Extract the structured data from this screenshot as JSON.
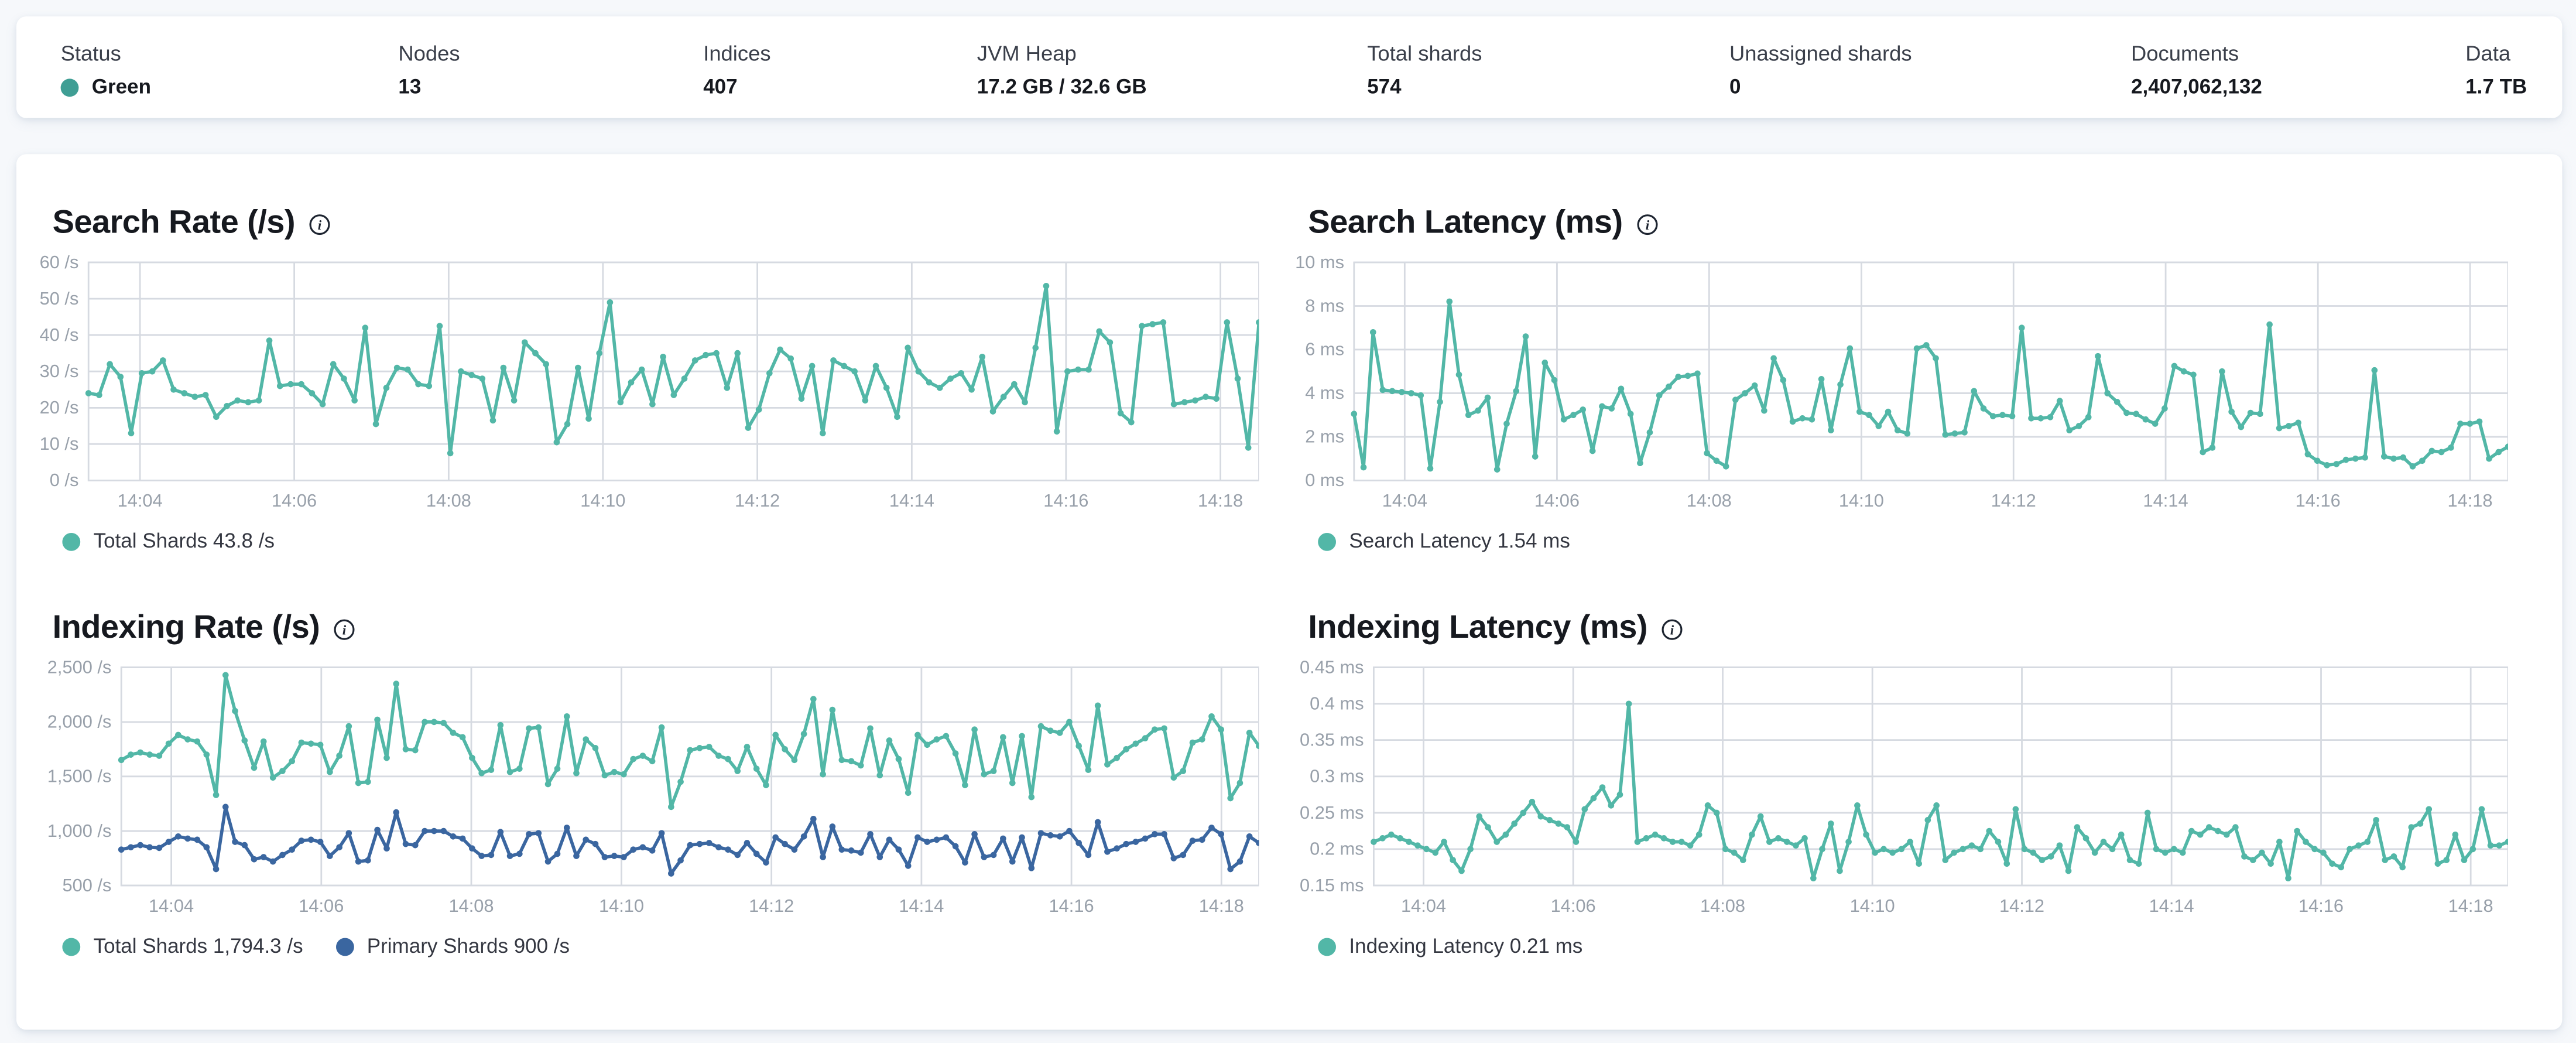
{
  "header": {
    "stats": [
      {
        "label": "Status",
        "value": "Green",
        "dot_color": "#3F9E94"
      },
      {
        "label": "Nodes",
        "value": "13"
      },
      {
        "label": "Indices",
        "value": "407"
      },
      {
        "label": "JVM Heap",
        "value": "17.2 GB / 32.6 GB"
      },
      {
        "label": "Total shards",
        "value": "574"
      },
      {
        "label": "Unassigned shards",
        "value": "0"
      },
      {
        "label": "Documents",
        "value": "2,407,062,132"
      },
      {
        "label": "Data",
        "value": "1.7 TB"
      }
    ]
  },
  "chart_data": {
    "note": "see charts[] below; all four are line charts sharing x-axis 14:03:20 - 14:18:30"
  },
  "charts": [
    {
      "type": "line",
      "title": "Search Rate (/s)",
      "y_min": 0,
      "y_max": 60,
      "y_ticks": [
        "60 /s",
        "50 /s",
        "40 /s",
        "30 /s",
        "20 /s",
        "10 /s",
        "0 /s"
      ],
      "x_domain": {
        "t0": 200,
        "t1": 1110
      },
      "x_ticks": [
        {
          "label": "14:04",
          "t": 240
        },
        {
          "label": "14:06",
          "t": 360
        },
        {
          "label": "14:08",
          "t": 480
        },
        {
          "label": "14:10",
          "t": 600
        },
        {
          "label": "14:12",
          "t": 720
        },
        {
          "label": "14:14",
          "t": 840
        },
        {
          "label": "14:16",
          "t": 960
        },
        {
          "label": "14:18",
          "t": 1080
        }
      ],
      "series": [
        {
          "name": "Total Shards",
          "current": "43.8 /s",
          "legend": "Total Shards 43.8 /s",
          "color": "#52B7A7",
          "values": [
            24,
            23.5,
            32,
            28.5,
            13,
            29.5,
            30,
            33,
            25,
            24,
            23,
            23.5,
            17.5,
            20.5,
            22,
            21.5,
            22,
            38.5,
            26,
            26.5,
            26.5,
            24,
            21,
            32,
            28,
            22,
            42,
            15.5,
            25.5,
            31,
            30.5,
            26.5,
            26,
            42.5,
            7.5,
            30,
            29,
            28,
            16.5,
            31,
            22,
            38,
            35,
            32,
            10.5,
            15.5,
            31,
            17,
            35,
            49,
            21.5,
            27,
            30.5,
            21,
            34,
            23.5,
            28,
            33,
            34.5,
            35,
            25.5,
            35,
            14.5,
            19.5,
            29.5,
            36,
            33.5,
            22.5,
            31.5,
            13,
            33,
            31.5,
            30,
            22,
            31.5,
            25.5,
            17.5,
            36.5,
            30,
            27,
            25.5,
            28,
            29.5,
            25,
            34,
            19,
            23,
            26.5,
            21.5,
            36.5,
            53.5,
            13.5,
            30,
            30.5,
            30.5,
            41,
            38,
            18.5,
            16,
            42.5,
            43,
            43.5,
            21,
            21.5,
            22,
            23,
            22.5,
            43.5,
            28,
            9,
            43.5
          ]
        }
      ]
    },
    {
      "type": "line",
      "title": "Search Latency (ms)",
      "y_min": 0,
      "y_max": 10,
      "y_ticks": [
        "10 ms",
        "8 ms",
        "6 ms",
        "4 ms",
        "2 ms",
        "0 ms"
      ],
      "x_domain": {
        "t0": 200,
        "t1": 1110
      },
      "x_ticks": [
        {
          "label": "14:04",
          "t": 240
        },
        {
          "label": "14:06",
          "t": 360
        },
        {
          "label": "14:08",
          "t": 480
        },
        {
          "label": "14:10",
          "t": 600
        },
        {
          "label": "14:12",
          "t": 720
        },
        {
          "label": "14:14",
          "t": 840
        },
        {
          "label": "14:16",
          "t": 960
        },
        {
          "label": "14:18",
          "t": 1080
        }
      ],
      "series": [
        {
          "name": "Search Latency",
          "current": "1.54 ms",
          "legend": "Search Latency 1.54 ms",
          "color": "#52B7A7",
          "values": [
            3.05,
            0.6,
            6.8,
            4.15,
            4.1,
            4.05,
            4.0,
            3.9,
            0.55,
            3.6,
            8.2,
            4.85,
            3.0,
            3.2,
            3.8,
            0.5,
            2.6,
            4.1,
            6.6,
            1.1,
            5.4,
            4.6,
            2.8,
            3.0,
            3.25,
            1.35,
            3.4,
            3.3,
            4.2,
            3.05,
            0.8,
            2.2,
            3.9,
            4.3,
            4.75,
            4.8,
            4.9,
            1.25,
            0.9,
            0.65,
            3.7,
            4.0,
            4.35,
            3.2,
            5.6,
            4.6,
            2.7,
            2.85,
            2.8,
            4.65,
            2.3,
            4.4,
            6.05,
            3.15,
            3.0,
            2.5,
            3.15,
            2.3,
            2.15,
            6.05,
            6.2,
            5.6,
            2.1,
            2.15,
            2.2,
            4.1,
            3.3,
            2.95,
            3.0,
            2.95,
            7.0,
            2.85,
            2.85,
            2.9,
            3.65,
            2.3,
            2.5,
            2.9,
            5.7,
            4.0,
            3.6,
            3.1,
            3.05,
            2.8,
            2.6,
            3.3,
            5.25,
            5.0,
            4.85,
            1.3,
            1.5,
            5.0,
            3.15,
            2.45,
            3.1,
            3.05,
            7.15,
            2.4,
            2.5,
            2.65,
            1.2,
            0.9,
            0.7,
            0.75,
            0.95,
            1.0,
            1.05,
            5.05,
            1.1,
            1.0,
            1.05,
            0.65,
            0.9,
            1.35,
            1.3,
            1.5,
            2.6,
            2.6,
            2.7,
            1.0,
            1.3,
            1.55
          ]
        }
      ]
    },
    {
      "type": "line",
      "title": "Indexing Rate (/s)",
      "y_min": 500,
      "y_max": 2500,
      "y_ticks": [
        "2,500 /s",
        "2,000 /s",
        "1,500 /s",
        "1,000 /s",
        "500 /s"
      ],
      "x_domain": {
        "t0": 200,
        "t1": 1110
      },
      "x_ticks": [
        {
          "label": "14:04",
          "t": 240
        },
        {
          "label": "14:06",
          "t": 360
        },
        {
          "label": "14:08",
          "t": 480
        },
        {
          "label": "14:10",
          "t": 600
        },
        {
          "label": "14:12",
          "t": 720
        },
        {
          "label": "14:14",
          "t": 840
        },
        {
          "label": "14:16",
          "t": 960
        },
        {
          "label": "14:18",
          "t": 1080
        }
      ],
      "series": [
        {
          "name": "Total Shards",
          "current": "1,794.3 /s",
          "legend": "Total Shards 1,794.3 /s",
          "color": "#52B7A7",
          "values": [
            1650,
            1700,
            1720,
            1700,
            1690,
            1800,
            1880,
            1840,
            1820,
            1700,
            1330,
            2430,
            2100,
            1830,
            1580,
            1820,
            1490,
            1550,
            1640,
            1810,
            1800,
            1790,
            1540,
            1690,
            1960,
            1440,
            1450,
            2020,
            1670,
            2350,
            1750,
            1740,
            2000,
            2000,
            1990,
            1900,
            1860,
            1670,
            1530,
            1560,
            1970,
            1540,
            1570,
            1940,
            1950,
            1430,
            1570,
            2050,
            1530,
            1840,
            1760,
            1510,
            1540,
            1520,
            1660,
            1690,
            1640,
            1950,
            1220,
            1450,
            1740,
            1760,
            1770,
            1690,
            1660,
            1550,
            1770,
            1570,
            1420,
            1880,
            1750,
            1650,
            1890,
            2210,
            1520,
            2110,
            1650,
            1640,
            1600,
            1940,
            1510,
            1830,
            1660,
            1350,
            1880,
            1790,
            1840,
            1870,
            1710,
            1420,
            1930,
            1520,
            1550,
            1860,
            1440,
            1870,
            1310,
            1960,
            1920,
            1900,
            2000,
            1780,
            1560,
            2150,
            1610,
            1670,
            1750,
            1800,
            1850,
            1930,
            1940,
            1490,
            1550,
            1810,
            1840,
            2050,
            1930,
            1300,
            1440,
            1900,
            1780
          ]
        },
        {
          "name": "Primary Shards",
          "current": "900 /s",
          "legend": "Primary Shards 900 /s",
          "color": "#3A66A0",
          "values": [
            830,
            850,
            870,
            850,
            845,
            900,
            950,
            930,
            920,
            850,
            650,
            1220,
            900,
            870,
            740,
            760,
            720,
            780,
            830,
            910,
            920,
            900,
            770,
            850,
            980,
            720,
            730,
            1010,
            840,
            1170,
            880,
            870,
            1000,
            1000,
            1000,
            950,
            930,
            840,
            770,
            780,
            990,
            770,
            790,
            970,
            980,
            720,
            790,
            1030,
            770,
            920,
            880,
            760,
            770,
            760,
            830,
            850,
            820,
            980,
            610,
            730,
            870,
            880,
            890,
            850,
            830,
            780,
            890,
            790,
            710,
            940,
            880,
            830,
            950,
            1110,
            760,
            1040,
            830,
            820,
            800,
            970,
            760,
            920,
            830,
            680,
            940,
            900,
            920,
            940,
            860,
            710,
            970,
            760,
            780,
            930,
            720,
            940,
            660,
            980,
            960,
            950,
            1000,
            890,
            780,
            1080,
            810,
            840,
            880,
            900,
            930,
            970,
            970,
            750,
            780,
            910,
            920,
            1030,
            970,
            650,
            720,
            950,
            890
          ]
        }
      ]
    },
    {
      "type": "line",
      "title": "Indexing Latency (ms)",
      "y_min": 0.15,
      "y_max": 0.45,
      "y_ticks": [
        "0.45 ms",
        "0.4 ms",
        "0.35 ms",
        "0.3 ms",
        "0.25 ms",
        "0.2 ms",
        "0.15 ms"
      ],
      "x_domain": {
        "t0": 200,
        "t1": 1110
      },
      "x_ticks": [
        {
          "label": "14:04",
          "t": 240
        },
        {
          "label": "14:06",
          "t": 360
        },
        {
          "label": "14:08",
          "t": 480
        },
        {
          "label": "14:10",
          "t": 600
        },
        {
          "label": "14:12",
          "t": 720
        },
        {
          "label": "14:14",
          "t": 840
        },
        {
          "label": "14:16",
          "t": 960
        },
        {
          "label": "14:18",
          "t": 1080
        }
      ],
      "series": [
        {
          "name": "Indexing Latency",
          "current": "0.21 ms",
          "legend": "Indexing Latency 0.21 ms",
          "color": "#52B7A7",
          "values": [
            0.21,
            0.215,
            0.22,
            0.215,
            0.21,
            0.205,
            0.2,
            0.195,
            0.21,
            0.185,
            0.17,
            0.2,
            0.245,
            0.23,
            0.21,
            0.22,
            0.235,
            0.25,
            0.265,
            0.245,
            0.24,
            0.235,
            0.23,
            0.21,
            0.255,
            0.27,
            0.285,
            0.26,
            0.275,
            0.4,
            0.21,
            0.215,
            0.22,
            0.215,
            0.21,
            0.21,
            0.205,
            0.22,
            0.26,
            0.25,
            0.2,
            0.195,
            0.185,
            0.22,
            0.245,
            0.21,
            0.215,
            0.21,
            0.205,
            0.215,
            0.16,
            0.2,
            0.235,
            0.17,
            0.21,
            0.26,
            0.22,
            0.195,
            0.2,
            0.195,
            0.2,
            0.21,
            0.18,
            0.24,
            0.26,
            0.185,
            0.195,
            0.2,
            0.205,
            0.2,
            0.225,
            0.21,
            0.18,
            0.255,
            0.2,
            0.195,
            0.185,
            0.19,
            0.205,
            0.17,
            0.23,
            0.215,
            0.195,
            0.21,
            0.2,
            0.22,
            0.185,
            0.18,
            0.25,
            0.2,
            0.195,
            0.2,
            0.195,
            0.225,
            0.22,
            0.23,
            0.225,
            0.22,
            0.23,
            0.19,
            0.185,
            0.195,
            0.18,
            0.21,
            0.16,
            0.225,
            0.21,
            0.2,
            0.195,
            0.18,
            0.175,
            0.2,
            0.205,
            0.21,
            0.24,
            0.185,
            0.19,
            0.175,
            0.23,
            0.235,
            0.255,
            0.18,
            0.185,
            0.22,
            0.185,
            0.2,
            0.255,
            0.205,
            0.205,
            0.21
          ]
        }
      ]
    }
  ]
}
